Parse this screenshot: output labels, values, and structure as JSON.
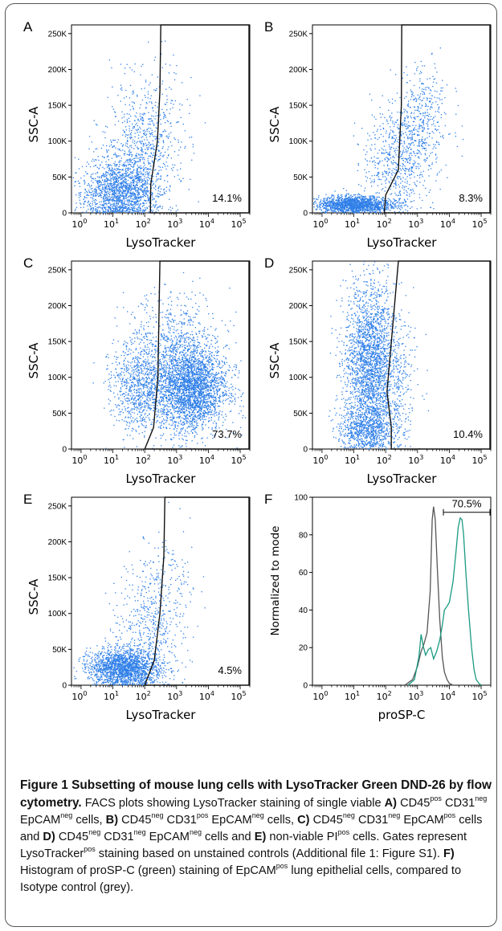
{
  "chart_data": [
    {
      "type": "scatter",
      "panel_label": "A",
      "xlabel": "LysoTracker",
      "ylabel": "SSC-A",
      "x_scale": "log",
      "xlim": [
        0.5,
        200000
      ],
      "ylim": [
        0,
        262144
      ],
      "y_ticks": [
        "0",
        "50K",
        "100K",
        "150K",
        "200K",
        "250K"
      ],
      "x_ticks": [
        "0",
        "1",
        "2",
        "3",
        "4",
        "5"
      ],
      "gate_percent": "14.1%",
      "gate_boundary": [
        [
          150,
          0
        ],
        [
          155,
          40000
        ],
        [
          250,
          100000
        ],
        [
          300,
          170000
        ],
        [
          320,
          262144
        ]
      ],
      "populations": [
        {
          "x_center": 15,
          "x_spread_decades": 0.6,
          "y_center": 30000,
          "y_spread": 22000,
          "count": 1500
        },
        {
          "x_center": 60,
          "x_spread_decades": 0.55,
          "y_center": 90000,
          "y_spread": 45000,
          "count": 650
        },
        {
          "x_center": 300,
          "x_spread_decades": 0.5,
          "y_center": 120000,
          "y_spread": 50000,
          "count": 180
        }
      ]
    },
    {
      "type": "scatter",
      "panel_label": "B",
      "xlabel": "LysoTracker",
      "ylabel": "SSC-A",
      "x_scale": "log",
      "xlim": [
        0.5,
        200000
      ],
      "ylim": [
        0,
        262144
      ],
      "y_ticks": [
        "0",
        "50K",
        "100K",
        "150K",
        "200K",
        "250K"
      ],
      "x_ticks": [
        "0",
        "1",
        "2",
        "3",
        "4",
        "5"
      ],
      "gate_percent": "8.3%",
      "gate_boundary": [
        [
          90,
          0
        ],
        [
          100,
          25000
        ],
        [
          250,
          60000
        ],
        [
          310,
          150000
        ],
        [
          320,
          262144
        ]
      ],
      "populations": [
        {
          "x_center": 10,
          "x_spread_decades": 0.6,
          "y_center": 12000,
          "y_spread": 6000,
          "count": 1500
        },
        {
          "x_center": 200,
          "x_spread_decades": 0.5,
          "y_center": 70000,
          "y_spread": 35000,
          "count": 550
        },
        {
          "x_center": 1200,
          "x_spread_decades": 0.45,
          "y_center": 130000,
          "y_spread": 40000,
          "count": 450
        }
      ]
    },
    {
      "type": "scatter",
      "panel_label": "C",
      "xlabel": "LysoTracker",
      "ylabel": "SSC-A",
      "x_scale": "log",
      "xlim": [
        0.5,
        200000
      ],
      "ylim": [
        0,
        262144
      ],
      "y_ticks": [
        "0",
        "50K",
        "100K",
        "150K",
        "200K",
        "250K"
      ],
      "x_ticks": [
        "0",
        "1",
        "2",
        "3",
        "4",
        "5"
      ],
      "gate_percent": "73.7%",
      "gate_boundary": [
        [
          100,
          0
        ],
        [
          190,
          30000
        ],
        [
          260,
          100000
        ],
        [
          300,
          262144
        ]
      ],
      "populations": [
        {
          "x_center": 80,
          "x_spread_decades": 0.5,
          "y_center": 85000,
          "y_spread": 30000,
          "count": 900
        },
        {
          "x_center": 3000,
          "x_spread_decades": 0.55,
          "y_center": 85000,
          "y_spread": 30000,
          "count": 2700
        },
        {
          "x_center": 800,
          "x_spread_decades": 0.7,
          "y_center": 140000,
          "y_spread": 40000,
          "count": 700
        }
      ]
    },
    {
      "type": "scatter",
      "panel_label": "D",
      "xlabel": "LysoTracker",
      "ylabel": "SSC-A",
      "x_scale": "log",
      "xlim": [
        0.5,
        200000
      ],
      "ylim": [
        0,
        262144
      ],
      "y_ticks": [
        "0",
        "50K",
        "100K",
        "150K",
        "200K",
        "250K"
      ],
      "x_ticks": [
        "0",
        "1",
        "2",
        "3",
        "4",
        "5"
      ],
      "gate_percent": "10.4%",
      "gate_boundary": [
        [
          150,
          0
        ],
        [
          150,
          30000
        ],
        [
          110,
          80000
        ],
        [
          250,
          262144
        ]
      ],
      "populations": [
        {
          "x_center": 30,
          "x_spread_decades": 0.4,
          "y_center": 120000,
          "y_spread": 55000,
          "count": 2300
        },
        {
          "x_center": 25,
          "x_spread_decades": 0.45,
          "y_center": 30000,
          "y_spread": 15000,
          "count": 700
        },
        {
          "x_center": 200,
          "x_spread_decades": 0.4,
          "y_center": 100000,
          "y_spread": 50000,
          "count": 300
        }
      ]
    },
    {
      "type": "scatter",
      "panel_label": "E",
      "xlabel": "LysoTracker",
      "ylabel": "SSC-A",
      "x_scale": "log",
      "xlim": [
        0.5,
        200000
      ],
      "ylim": [
        0,
        262144
      ],
      "y_ticks": [
        "0",
        "50K",
        "100K",
        "150K",
        "200K",
        "250K"
      ],
      "x_ticks": [
        "0",
        "1",
        "2",
        "3",
        "4",
        "5"
      ],
      "gate_percent": "4.5%",
      "gate_boundary": [
        [
          100,
          0
        ],
        [
          200,
          35000
        ],
        [
          300,
          100000
        ],
        [
          400,
          180000
        ],
        [
          430,
          262144
        ]
      ],
      "populations": [
        {
          "x_center": 20,
          "x_spread_decades": 0.55,
          "y_center": 25000,
          "y_spread": 13000,
          "count": 1800
        },
        {
          "x_center": 120,
          "x_spread_decades": 0.5,
          "y_center": 80000,
          "y_spread": 45000,
          "count": 500
        },
        {
          "x_center": 500,
          "x_spread_decades": 0.45,
          "y_center": 140000,
          "y_spread": 45000,
          "count": 150
        }
      ]
    },
    {
      "type": "line",
      "panel_label": "F",
      "xlabel": "proSP-C",
      "ylabel": "Normalized to mode",
      "x_scale": "log",
      "xlim": [
        0.5,
        200000
      ],
      "ylim": [
        0,
        100
      ],
      "y_ticks": [
        "0",
        "20",
        "40",
        "60",
        "80",
        "100"
      ],
      "x_ticks": [
        "0",
        "1",
        "2",
        "3",
        "4",
        "5"
      ],
      "gate_percent": "70.5%",
      "gate_range": [
        6500,
        200000
      ],
      "series": [
        {
          "color": "#555555",
          "x": [
            400,
            700,
            1000,
            1300,
            1600,
            2000,
            2500,
            2900,
            3200,
            3600,
            4200,
            5000,
            6000,
            7000,
            8500,
            10000,
            13000
          ],
          "values": [
            0,
            3,
            10,
            18,
            22,
            28,
            50,
            88,
            95,
            88,
            62,
            35,
            15,
            7,
            3,
            1,
            0
          ]
        },
        {
          "color": "#1a9a82",
          "x": [
            500,
            800,
            1100,
            1300,
            1500,
            1800,
            2200,
            2600,
            3200,
            4000,
            5000,
            6000,
            7000,
            8500,
            10000,
            13000,
            16000,
            19000,
            22000,
            25000,
            28000,
            33000,
            40000,
            50000,
            60000,
            70000,
            85000,
            100000
          ],
          "values": [
            0,
            3,
            15,
            27,
            21,
            16,
            19,
            20,
            14,
            18,
            24,
            32,
            40,
            42,
            44,
            55,
            70,
            84,
            89,
            88,
            80,
            60,
            40,
            20,
            8,
            3,
            1,
            0
          ]
        }
      ]
    }
  ],
  "caption": {
    "title": "Figure 1 Subsetting of mouse lung cells with LysoTracker Green DND-26 by flow cytometry.",
    "s1": " FACS plots showing LysoTracker staining of single viable ",
    "a": "A)",
    "s2": " CD45",
    "s2sup": "pos",
    "s3": " CD31",
    "s3sup": "neg",
    "s4": " EpCAM",
    "s4sup": "neg",
    "s5": " cells, ",
    "b": "B)",
    "s6": " CD45",
    "s6sup": "neg",
    "s7": " CD31",
    "s7sup": "pos",
    "s8": " EpCAM",
    "s8sup": "neg",
    "s9": " cells, ",
    "c": "C)",
    "s10": " CD45",
    "s10sup": "neg",
    "s11": " CD31",
    "s11sup": "neg",
    "s12": " EpCAM",
    "s12sup": "pos",
    "s13": " cells and ",
    "d": "D)",
    "s14": " CD45",
    "s14sup": "neg",
    "s15": " CD31",
    "s15sup": "neg",
    "s16": " EpCAM",
    "s16sup": "neg",
    "s17": " cells and ",
    "e": "E)",
    "s18": " non-viable PI",
    "s18sup": "pos",
    "s19": " cells. Gates represent LysoTracker",
    "s19sup": "pos",
    "s20": " staining based on unstained controls (Additional file 1: Figure S1). ",
    "f": "F)",
    "s21": " Histogram of proSP-C (green) staining of EpCAM",
    "s21sup": "pos",
    "s22": " lung epithelial cells, compared to Isotype control (grey)."
  },
  "colors": {
    "dots": "#2f7fe8",
    "gate": "#111111",
    "histogram_grey": "#555555",
    "histogram_green": "#1a9a82"
  }
}
